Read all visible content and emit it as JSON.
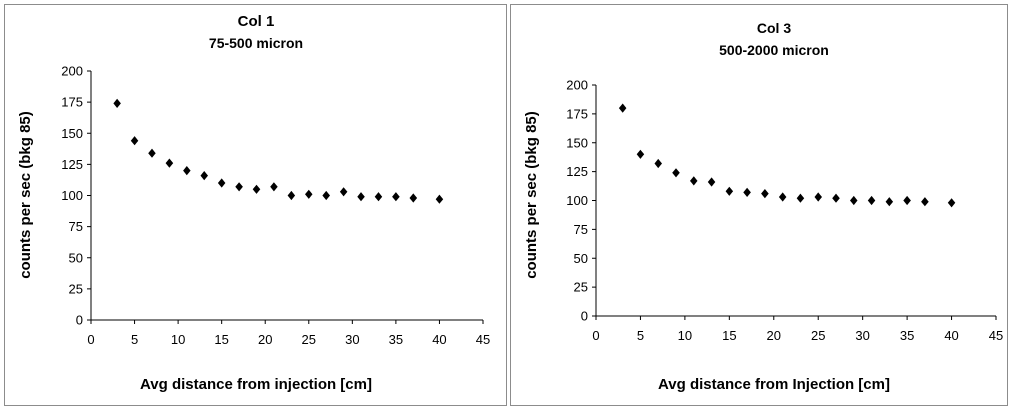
{
  "chart_data": [
    {
      "type": "scatter",
      "title": [
        "Col 1",
        "75-500 micron"
      ],
      "xlabel": "Avg distance from injection  [cm]",
      "ylabel": "counts per sec (bkg 85)",
      "xlim": [
        0,
        45
      ],
      "ylim": [
        0,
        200
      ],
      "xticks": [
        0,
        5,
        10,
        15,
        20,
        25,
        30,
        35,
        40,
        45
      ],
      "yticks": [
        0,
        25,
        50,
        75,
        100,
        125,
        150,
        175,
        200
      ],
      "grid": false,
      "marker": "diamond",
      "series": [
        {
          "x": [
            3,
            5,
            7,
            9,
            11,
            13,
            15,
            17,
            19,
            21,
            23,
            25,
            27,
            29,
            31,
            33,
            35,
            37,
            40
          ],
          "y": [
            174,
            144,
            134,
            126,
            120,
            116,
            110,
            107,
            105,
            107,
            100,
            101,
            100,
            103,
            99,
            99,
            99,
            98,
            97
          ]
        }
      ]
    },
    {
      "type": "scatter",
      "title": [
        "Col 3",
        "500-2000 micron"
      ],
      "xlabel": "Avg distance from Injection  [cm]",
      "ylabel": "counts per sec (bkg 85)",
      "xlim": [
        0,
        45
      ],
      "ylim": [
        0,
        200
      ],
      "xticks": [
        0,
        5,
        10,
        15,
        20,
        25,
        30,
        35,
        40,
        45
      ],
      "yticks": [
        0,
        25,
        50,
        75,
        100,
        125,
        150,
        175,
        200
      ],
      "grid": false,
      "marker": "diamond",
      "series": [
        {
          "x": [
            3,
            5,
            7,
            9,
            11,
            13,
            15,
            17,
            19,
            21,
            23,
            25,
            27,
            29,
            31,
            33,
            35,
            37,
            40
          ],
          "y": [
            180,
            140,
            132,
            124,
            117,
            116,
            108,
            107,
            106,
            103,
            102,
            103,
            102,
            100,
            100,
            99,
            100,
            99,
            98
          ]
        }
      ]
    }
  ]
}
